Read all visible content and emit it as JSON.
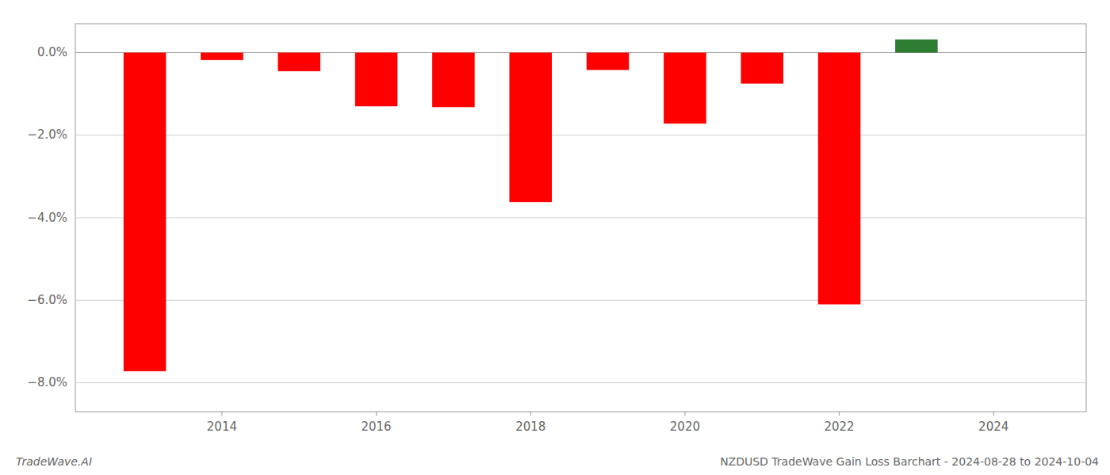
{
  "chart_data": {
    "type": "bar",
    "x": [
      2013,
      2014,
      2015,
      2016,
      2017,
      2018,
      2019,
      2020,
      2021,
      2022,
      2023
    ],
    "values": [
      -7.72,
      -0.18,
      -0.45,
      -1.3,
      -1.32,
      -3.62,
      -0.42,
      -1.72,
      -0.75,
      -6.1,
      0.32
    ],
    "colors": [
      "#ff0000",
      "#ff0000",
      "#ff0000",
      "#ff0000",
      "#ff0000",
      "#ff0000",
      "#ff0000",
      "#ff0000",
      "#ff0000",
      "#ff0000",
      "#2e7d32"
    ],
    "xlim": [
      2012.1,
      2025.2
    ],
    "xticks": [
      2014,
      2016,
      2018,
      2020,
      2022,
      2024
    ],
    "ylim": [
      -8.7,
      0.7
    ],
    "yticks": [
      {
        "value": 0.0,
        "label": "0.0%"
      },
      {
        "value": -2.0,
        "label": "−2.0%"
      },
      {
        "value": -4.0,
        "label": "−4.0%"
      },
      {
        "value": -6.0,
        "label": "−6.0%"
      },
      {
        "value": -8.0,
        "label": "−8.0%"
      }
    ],
    "grid": true,
    "annotations": [
      "TradeWave.AI",
      "NZDUSD TradeWave Gain Loss Barchart - 2024-08-28 to 2024-10-04"
    ]
  }
}
